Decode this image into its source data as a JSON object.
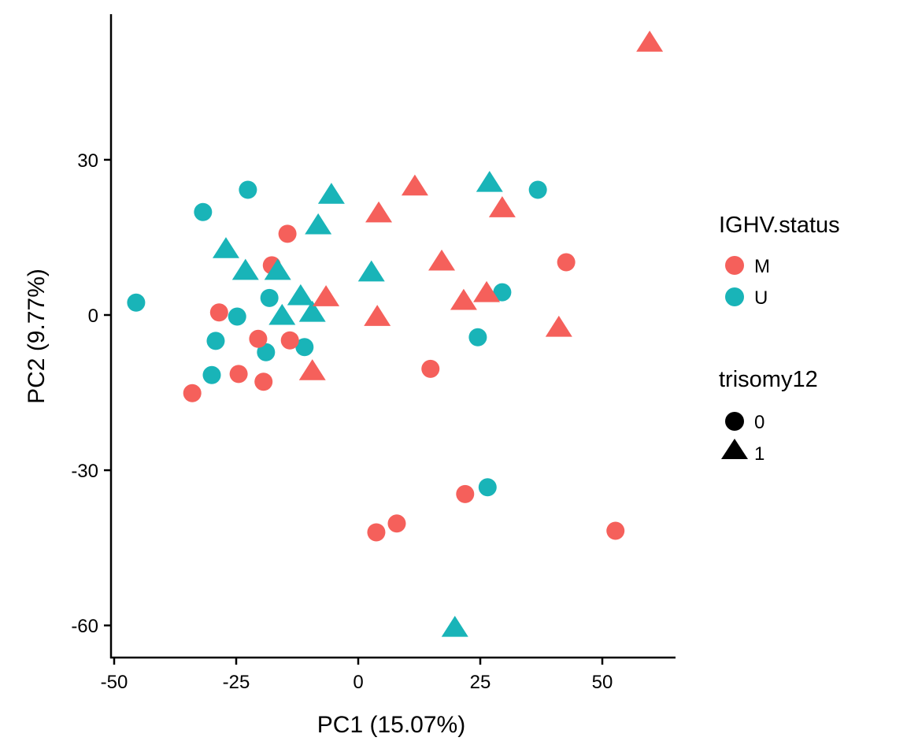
{
  "chart_data": {
    "type": "scatter",
    "title": "",
    "xlabel": "PC1 (15.07%)",
    "ylabel": "PC2 (9.77%)",
    "xlim": [
      -51,
      65
    ],
    "ylim": [
      -66,
      58
    ],
    "xticks": [
      -50,
      -25,
      0,
      25,
      50
    ],
    "xtick_labels": [
      "-50",
      "-25",
      "0",
      "25",
      "50"
    ],
    "yticks": [
      30,
      0,
      -30,
      -60
    ],
    "ytick_labels": [
      "30",
      "0",
      "-30",
      "-60"
    ],
    "grid": false,
    "legend_placement": "right",
    "legends": [
      {
        "title": "IGHV.status",
        "kind": "color",
        "entries": [
          {
            "label": "M",
            "color": "#F5605B"
          },
          {
            "label": "U",
            "color": "#19B4B8"
          }
        ]
      },
      {
        "title": "trisomy12",
        "kind": "shape",
        "entries": [
          {
            "label": "0",
            "shape": "circle"
          },
          {
            "label": "1",
            "shape": "triangle"
          }
        ]
      }
    ],
    "series": [
      {
        "name": "U / 0",
        "IGHV.status": "U",
        "trisomy12": "0",
        "color": "#19B4B8",
        "shape": "circle",
        "points": [
          [
            -45.5,
            2.4
          ],
          [
            -24.8,
            -0.3
          ],
          [
            -29.2,
            -5.0
          ],
          [
            -18.9,
            -7.2
          ],
          [
            -11.0,
            -6.2
          ],
          [
            -30.0,
            -11.6
          ],
          [
            -18.2,
            3.3
          ],
          [
            -22.6,
            24.2
          ],
          [
            -31.8,
            19.9
          ],
          [
            36.8,
            24.2
          ],
          [
            29.5,
            4.4
          ],
          [
            24.5,
            -4.3
          ],
          [
            26.5,
            -33.3
          ]
        ]
      },
      {
        "name": "M / 0",
        "IGHV.status": "M",
        "trisomy12": "0",
        "color": "#F5605B",
        "shape": "circle",
        "points": [
          [
            -28.5,
            0.5
          ],
          [
            -20.5,
            -4.6
          ],
          [
            -14.0,
            -4.9
          ],
          [
            -24.5,
            -11.4
          ],
          [
            -19.4,
            -12.9
          ],
          [
            -34.0,
            -15.1
          ],
          [
            -17.7,
            9.6
          ],
          [
            -14.5,
            15.7
          ],
          [
            42.6,
            10.2
          ],
          [
            14.8,
            -10.4
          ],
          [
            21.9,
            -34.6
          ],
          [
            3.7,
            -42.0
          ],
          [
            7.9,
            -40.3
          ],
          [
            52.7,
            -41.7
          ]
        ]
      },
      {
        "name": "U / 1",
        "IGHV.status": "U",
        "trisomy12": "1",
        "color": "#19B4B8",
        "shape": "triangle",
        "points": [
          [
            -27.1,
            12.6
          ],
          [
            -23.1,
            8.4
          ],
          [
            -16.5,
            8.4
          ],
          [
            -11.8,
            3.5
          ],
          [
            -15.6,
            -0.3
          ],
          [
            -9.4,
            0.3
          ],
          [
            -5.5,
            23.1
          ],
          [
            -8.2,
            17.2
          ],
          [
            2.7,
            8.1
          ],
          [
            26.9,
            25.4
          ],
          [
            19.8,
            -60.6
          ]
        ]
      },
      {
        "name": "M / 1",
        "IGHV.status": "M",
        "trisomy12": "1",
        "color": "#F5605B",
        "shape": "triangle",
        "points": [
          [
            -6.6,
            3.3
          ],
          [
            -9.4,
            -11.0
          ],
          [
            11.6,
            24.7
          ],
          [
            4.2,
            19.5
          ],
          [
            29.5,
            20.5
          ],
          [
            17.1,
            10.2
          ],
          [
            26.3,
            4.1
          ],
          [
            21.6,
            2.6
          ],
          [
            3.9,
            -0.5
          ],
          [
            41.1,
            -2.6
          ],
          [
            59.7,
            52.5
          ]
        ]
      }
    ]
  }
}
